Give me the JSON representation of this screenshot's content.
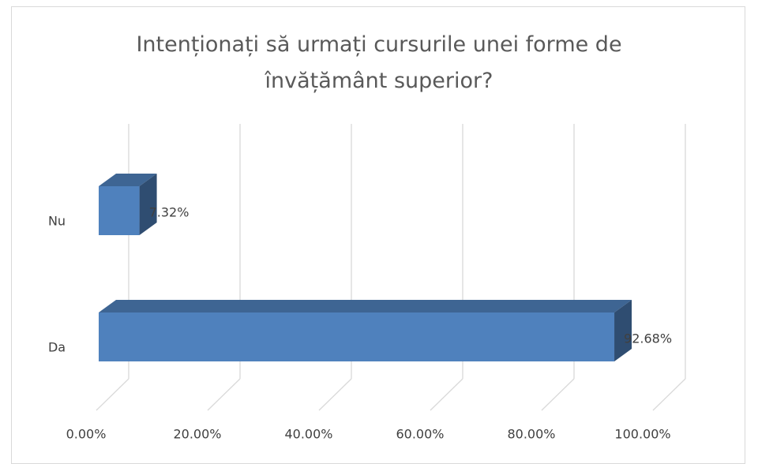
{
  "chart_data": {
    "type": "bar3d_horizontal",
    "title": "Intenționați să urmați cursurile unei forme de învățământ superior?",
    "categories": [
      "Nu",
      "Da"
    ],
    "values": [
      7.32,
      92.68
    ],
    "value_labels": [
      "7.32%",
      "92.68%"
    ],
    "color": "#4f81bd",
    "xlim": [
      0,
      100
    ],
    "xticks": [
      {
        "value": 0,
        "label": "0.00%"
      },
      {
        "value": 20,
        "label": "20.00%"
      },
      {
        "value": 40,
        "label": "40.00%"
      },
      {
        "value": 60,
        "label": "60.00%"
      },
      {
        "value": 80,
        "label": "80.00%"
      },
      {
        "value": 100,
        "label": "100.00%"
      }
    ],
    "grid": true
  }
}
